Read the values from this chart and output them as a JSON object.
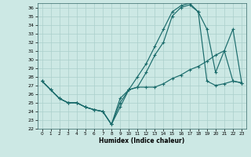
{
  "title": "",
  "xlabel": "Humidex (Indice chaleur)",
  "xlim": [
    -0.5,
    23.5
  ],
  "ylim": [
    22,
    36.5
  ],
  "xticks": [
    0,
    1,
    2,
    3,
    4,
    5,
    6,
    7,
    8,
    9,
    10,
    11,
    12,
    13,
    14,
    15,
    16,
    17,
    18,
    19,
    20,
    21,
    22,
    23
  ],
  "yticks": [
    22,
    23,
    24,
    25,
    26,
    27,
    28,
    29,
    30,
    31,
    32,
    33,
    34,
    35,
    36
  ],
  "background_color": "#cce8e4",
  "grid_color": "#aacfcb",
  "line_color": "#1a6b6b",
  "line1_x": [
    0,
    1,
    2,
    3,
    4,
    5,
    6,
    7,
    8,
    9,
    10,
    11,
    12,
    13,
    14,
    15,
    16,
    17,
    18,
    19,
    20,
    21,
    22,
    23
  ],
  "line1_y": [
    27.5,
    26.5,
    25.5,
    25.0,
    25.0,
    24.5,
    24.2,
    24.0,
    22.5,
    24.5,
    26.5,
    28.0,
    29.5,
    31.5,
    33.5,
    35.5,
    36.2,
    36.5,
    35.5,
    27.5,
    27.0,
    27.2,
    27.5,
    27.3
  ],
  "line2_x": [
    0,
    1,
    2,
    3,
    4,
    5,
    6,
    7,
    8,
    9,
    10,
    11,
    12,
    13,
    14,
    15,
    16,
    17,
    18,
    19,
    20,
    21,
    22,
    23
  ],
  "line2_y": [
    27.5,
    26.5,
    25.5,
    25.0,
    25.0,
    24.5,
    24.2,
    24.0,
    22.5,
    25.0,
    26.5,
    26.8,
    28.5,
    30.5,
    32.0,
    35.0,
    36.0,
    36.3,
    35.5,
    33.5,
    28.5,
    31.0,
    27.5,
    27.3
  ],
  "line3_x": [
    0,
    1,
    2,
    3,
    4,
    5,
    6,
    7,
    8,
    9,
    10,
    11,
    12,
    13,
    14,
    15,
    16,
    17,
    18,
    19,
    20,
    21,
    22,
    23
  ],
  "line3_y": [
    27.5,
    26.5,
    25.5,
    25.0,
    25.0,
    24.5,
    24.2,
    24.0,
    22.5,
    25.5,
    26.5,
    26.8,
    26.8,
    26.8,
    27.2,
    27.8,
    28.2,
    28.8,
    29.2,
    29.8,
    30.5,
    31.0,
    33.5,
    27.3
  ]
}
